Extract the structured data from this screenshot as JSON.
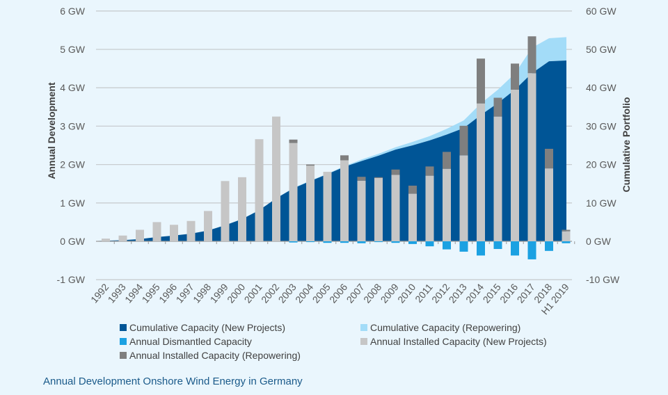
{
  "caption": "Annual Development Onshore Wind Energy in Germany",
  "chart_data": {
    "type": "bar+area",
    "categories": [
      "1992",
      "1993",
      "1994",
      "1995",
      "1996",
      "1997",
      "1998",
      "1999",
      "2000",
      "2001",
      "2002",
      "2003",
      "2004",
      "2005",
      "2006",
      "2007",
      "2008",
      "2009",
      "2010",
      "2011",
      "2012",
      "2013",
      "2014",
      "2015",
      "2016",
      "2017",
      "2018",
      "H1 2019"
    ],
    "ylabel_left": "Annual Development",
    "ylabel_right": "Cumulative Portfolio",
    "ylim_left": [
      -1,
      6
    ],
    "ylim_right": [
      -10,
      60
    ],
    "yticks_left": [
      "-1 GW",
      "0 GW",
      "1 GW",
      "2 GW",
      "3 GW",
      "4 GW",
      "5 GW",
      "6 GW"
    ],
    "yticks_right": [
      "-10 GW",
      "0 GW",
      "10 GW",
      "20 GW",
      "30 GW",
      "40 GW",
      "50 GW",
      "60 GW"
    ],
    "grid": true,
    "legend_position": "bottom",
    "series": [
      {
        "name": "Cumulative Capacity (New Projects)",
        "type": "area",
        "axis": "right",
        "color": "#005596",
        "values": [
          0.1,
          0.3,
          0.6,
          1.1,
          1.5,
          2.0,
          2.8,
          4.2,
          5.8,
          8.1,
          11.2,
          13.8,
          15.7,
          17.5,
          19.4,
          20.9,
          22.3,
          23.9,
          25.0,
          26.3,
          27.8,
          29.5,
          32.9,
          36.0,
          39.5,
          43.8,
          46.9,
          47.1
        ]
      },
      {
        "name": "Cumulative Capacity (Repowering)",
        "type": "area-stacked",
        "axis": "right",
        "color": "#a3dcf8",
        "values": [
          0,
          0,
          0,
          0,
          0,
          0,
          0,
          0,
          0,
          0,
          0,
          0.1,
          0.1,
          0.1,
          0.2,
          0.4,
          0.5,
          0.6,
          0.9,
          1.1,
          1.5,
          2.0,
          3.0,
          3.5,
          4.2,
          6.6,
          6.0,
          6.1
        ]
      },
      {
        "name": "Annual Dismantled Capacity",
        "type": "bar",
        "axis": "left",
        "color": "#1ba1e2",
        "values": [
          0,
          0,
          0,
          0,
          0,
          0,
          0,
          0,
          0,
          0,
          0,
          -0.03,
          -0.02,
          -0.04,
          -0.04,
          -0.05,
          -0.02,
          -0.04,
          -0.07,
          -0.13,
          -0.21,
          -0.27,
          -0.37,
          -0.2,
          -0.37,
          -0.47,
          -0.25,
          -0.05
        ]
      },
      {
        "name": "Annual Installed Capacity (New Projects)",
        "type": "bar-stacked",
        "axis": "left",
        "color": "#c6c6c6",
        "values": [
          0.07,
          0.15,
          0.3,
          0.5,
          0.43,
          0.53,
          0.79,
          1.57,
          1.67,
          2.66,
          3.25,
          2.56,
          1.97,
          1.81,
          2.11,
          1.58,
          1.65,
          1.73,
          1.24,
          1.71,
          1.89,
          2.24,
          3.59,
          3.25,
          3.95,
          4.38,
          1.9,
          0.26
        ]
      },
      {
        "name": "Annual Installed Capacity (Repowering)",
        "type": "bar-stacked",
        "axis": "left",
        "color": "#7f7f7f",
        "values": [
          0,
          0,
          0,
          0,
          0,
          0,
          0,
          0,
          0,
          0,
          0,
          0.09,
          0.03,
          0,
          0.13,
          0.1,
          0.02,
          0.14,
          0.21,
          0.24,
          0.44,
          0.77,
          1.17,
          0.49,
          0.68,
          0.96,
          0.51,
          0.04
        ]
      }
    ]
  },
  "legend": [
    {
      "label": "Cumulative Capacity (New Projects)",
      "color": "#005596"
    },
    {
      "label": "Cumulative Capacity (Repowering)",
      "color": "#a3dcf8"
    },
    {
      "label": "Annual Dismantled Capacity",
      "color": "#1ba1e2"
    },
    {
      "label": "Annual Installed Capacity (New Projects)",
      "color": "#c6c6c6"
    },
    {
      "label": "Annual Installed Capacity (Repowering)",
      "color": "#7f7f7f"
    }
  ]
}
